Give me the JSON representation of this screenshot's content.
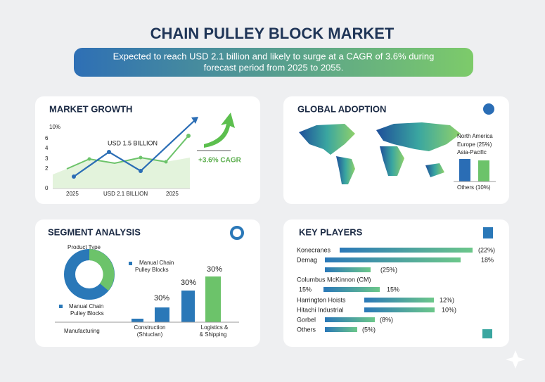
{
  "header": {
    "title": "CHAIN PULLEY BLOCK MARKET",
    "banner": [
      "Expected to reach USD 2.1 billion and likely to surge at a CAGR of 3.6% during",
      "forecast period from 2025 to 2055."
    ]
  },
  "market_growth": {
    "title": "MARKET GROWTH",
    "axis_labels": [
      "10%",
      "6",
      "4",
      "3",
      "2",
      "0"
    ],
    "annotation": "USD 1.5 BILLION",
    "x_labels": [
      "2025",
      "USD 2.1 BILLION",
      "2025"
    ],
    "cagr": "+3.6% CAGR"
  },
  "global_adoption": {
    "title": "GLOBAL ADOPTION",
    "labels": [
      "North America",
      "Europe (25%)",
      "Asia-Pacific",
      "Others (10%)"
    ]
  },
  "segment_analysis": {
    "title": "SEGMENT ANALYSIS",
    "donut_title": "Product Type",
    "legend": [
      "Manual Chain",
      "Pulley Blocks",
      "Manual Chain",
      "Pulley Blocks"
    ],
    "bar_labels": [
      "30%",
      "30%",
      "30%"
    ],
    "categories": [
      "Manufacturing",
      "Construction",
      "(Shtuclan)",
      "Logistics &",
      "& Shipping"
    ]
  },
  "key_players": {
    "title": "KEY PLAYERS",
    "rows": [
      {
        "name": "Konecranes",
        "share": "(22%)"
      },
      {
        "name": "Demag",
        "share": "18%"
      },
      {
        "share": "(25%)"
      },
      {
        "name": "Columbus McKinnon (CM)"
      },
      {
        "share_left": "15%",
        "share": "15%"
      },
      {
        "name": "Harrington Hoists",
        "share": "12%)"
      },
      {
        "name": "Hitachi Industrial",
        "share": "10%)"
      },
      {
        "name": "Gorbel",
        "share": "(8%)"
      },
      {
        "name": "Others",
        "share": "(5%)"
      }
    ]
  }
}
